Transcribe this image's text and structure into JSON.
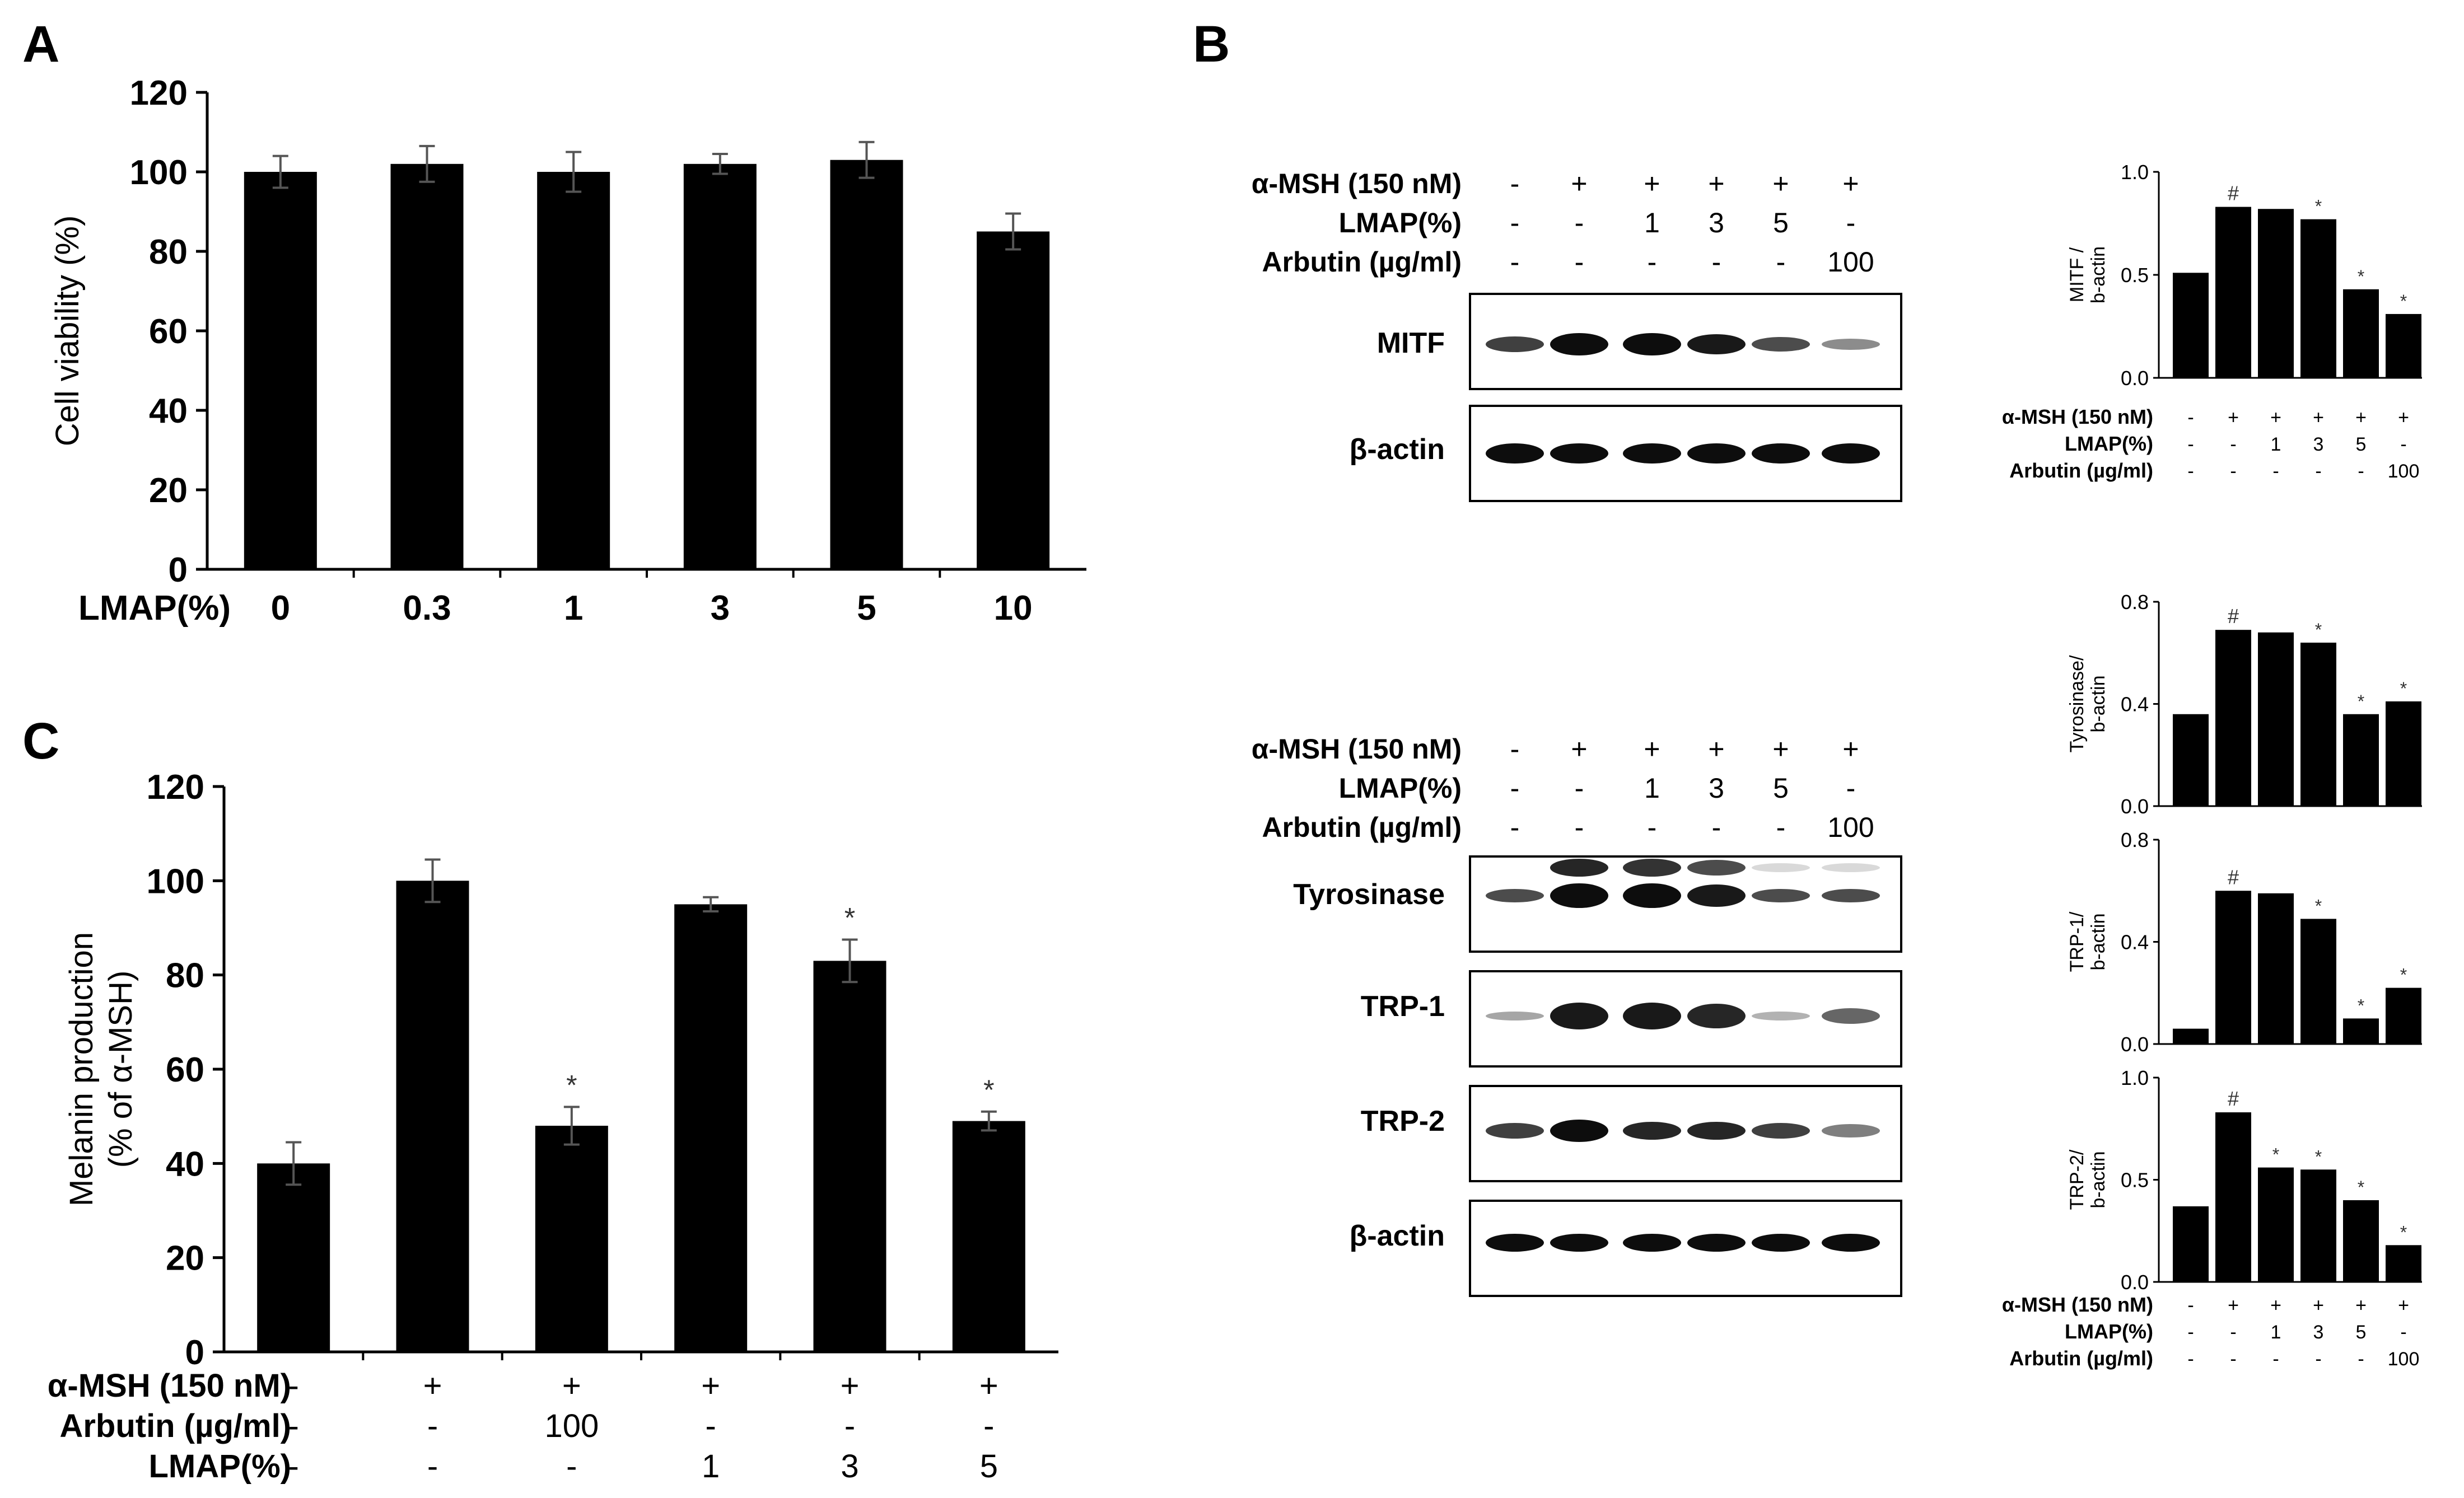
{
  "panels": {
    "A": "A",
    "B": "B",
    "C": "C"
  },
  "treatment_labels": {
    "msh": "α-MSH (150 nM)",
    "lmap": "LMAP(%)",
    "arbutin": "Arbutin (µg/ml)"
  },
  "blot_top": {
    "msh": [
      "-",
      "+",
      "+",
      "+",
      "+",
      "+"
    ],
    "lmap": [
      "-",
      "-",
      "1",
      "3",
      "5",
      "-"
    ],
    "arbutin": [
      "-",
      "-",
      "-",
      "-",
      "-",
      "100"
    ],
    "bands": [
      "MITF",
      "β-actin"
    ]
  },
  "blot_bottom": {
    "msh": [
      "-",
      "+",
      "+",
      "+",
      "+",
      "+"
    ],
    "lmap": [
      "-",
      "-",
      "1",
      "3",
      "5",
      "-"
    ],
    "arbutin": [
      "-",
      "-",
      "-",
      "-",
      "-",
      "100"
    ],
    "bands": [
      "Tyrosinase",
      "TRP-1",
      "TRP-2",
      "β-actin"
    ]
  },
  "small_chart_xlabels": {
    "msh": [
      "-",
      "+",
      "+",
      "+",
      "+",
      "+"
    ],
    "lmap": [
      "-",
      "-",
      "1",
      "3",
      "5",
      "-"
    ],
    "arbutin": [
      "-",
      "-",
      "-",
      "-",
      "-",
      "100"
    ]
  },
  "chart_data": [
    {
      "id": "A",
      "type": "bar",
      "xlabel": "LMAP(%)",
      "ylabel": "Cell viability (%)",
      "categories": [
        "0",
        "0.3",
        "1",
        "3",
        "5",
        "10"
      ],
      "values": [
        100,
        102,
        100,
        102,
        103,
        85
      ],
      "errors": [
        4,
        4.5,
        5,
        2.5,
        4.5,
        4.5
      ],
      "ylim": [
        0,
        120
      ],
      "yticks": [
        "0",
        "20",
        "40",
        "60",
        "80",
        "100",
        "120"
      ]
    },
    {
      "id": "C",
      "type": "bar",
      "ylabel": "Melanin production (% of α-MSH)",
      "categories": [
        "1",
        "2",
        "3",
        "4",
        "5",
        "6"
      ],
      "values": [
        40,
        100,
        48,
        95,
        83,
        49
      ],
      "errors": [
        4.5,
        4.5,
        4,
        1.5,
        4.5,
        2
      ],
      "markers": [
        "",
        "",
        "*",
        "",
        "*",
        "*"
      ],
      "ylim": [
        0,
        120
      ],
      "yticks": [
        "0",
        "20",
        "40",
        "60",
        "80",
        "100",
        "120"
      ],
      "rows": [
        {
          "label": "α-MSH (150 nM)",
          "values": [
            "-",
            "+",
            "+",
            "+",
            "+",
            "+"
          ]
        },
        {
          "label": "Arbutin (µg/ml)",
          "values": [
            "-",
            "-",
            "100",
            "-",
            "-",
            "-"
          ]
        },
        {
          "label": "LMAP(%)",
          "values": [
            "-",
            "-",
            "-",
            "1",
            "3",
            "5"
          ]
        }
      ]
    },
    {
      "id": "MITF",
      "type": "bar",
      "ylabel": "MITF /b-actin",
      "values": [
        0.51,
        0.83,
        0.82,
        0.77,
        0.43,
        0.31
      ],
      "markers": [
        "",
        "#",
        "",
        "*",
        "*",
        "*"
      ],
      "ylim": [
        0,
        1.0
      ],
      "yticks": [
        "0.0",
        "0.5",
        "1.0"
      ]
    },
    {
      "id": "Tyrosinase",
      "type": "bar",
      "ylabel": "Tyrosinase/ b-actin",
      "values": [
        0.36,
        0.69,
        0.68,
        0.64,
        0.36,
        0.41
      ],
      "markers": [
        "",
        "#",
        "",
        "*",
        "*",
        "*"
      ],
      "ylim": [
        0,
        0.8
      ],
      "yticks": [
        "0.0",
        "0.4",
        "0.8"
      ]
    },
    {
      "id": "TRP-1",
      "type": "bar",
      "ylabel": "TRP-1/ b-actin",
      "values": [
        0.06,
        0.6,
        0.59,
        0.49,
        0.1,
        0.22
      ],
      "markers": [
        "",
        "#",
        "",
        "*",
        "*",
        "*"
      ],
      "ylim": [
        0,
        0.8
      ],
      "yticks": [
        "0.0",
        "0.4",
        "0.8"
      ]
    },
    {
      "id": "TRP-2",
      "type": "bar",
      "ylabel": "TRP-2/ b-actin",
      "values": [
        0.37,
        0.83,
        0.56,
        0.55,
        0.4,
        0.18
      ],
      "markers": [
        "",
        "#",
        "*",
        "*",
        "*",
        "*"
      ],
      "ylim": [
        0,
        1.0
      ],
      "yticks": [
        "0.0",
        "0.5",
        "1.0"
      ]
    }
  ]
}
